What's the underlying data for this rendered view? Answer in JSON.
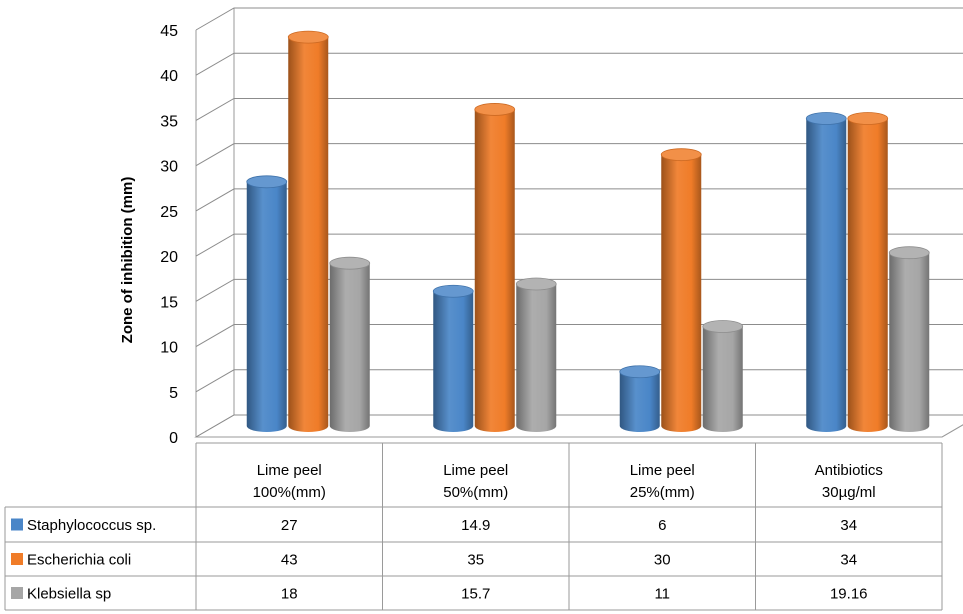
{
  "chart_data": {
    "type": "bar",
    "subtype": "3d-cylinder",
    "ylabel": "Zone of inhibition (mm)",
    "ylim": [
      0,
      45
    ],
    "yticks": [
      0,
      5,
      10,
      15,
      20,
      25,
      30,
      35,
      40,
      45
    ],
    "grid": true,
    "legend": "data-table",
    "categories": [
      [
        "Lime peel",
        "100%(mm)"
      ],
      [
        "Lime peel",
        "50%(mm)"
      ],
      [
        "Lime peel",
        "25%(mm)"
      ],
      [
        "Antibiotics",
        "30µg/ml"
      ]
    ],
    "series": [
      {
        "name": "Staphylococcus sp.",
        "color": "#4a86c8",
        "values": [
          27,
          14.9,
          6,
          34
        ],
        "labels": [
          "27",
          "14.9",
          "6",
          "34"
        ]
      },
      {
        "name": "Escherichia coli",
        "color": "#f07c28",
        "values": [
          43,
          35,
          30,
          34
        ],
        "labels": [
          "43",
          "35",
          "30",
          "34"
        ]
      },
      {
        "name": "Klebsiella sp",
        "color": "#a6a6a6",
        "values": [
          18,
          15.7,
          11,
          19.16
        ],
        "labels": [
          "18",
          "15.7",
          "11",
          "19.16"
        ]
      }
    ]
  }
}
